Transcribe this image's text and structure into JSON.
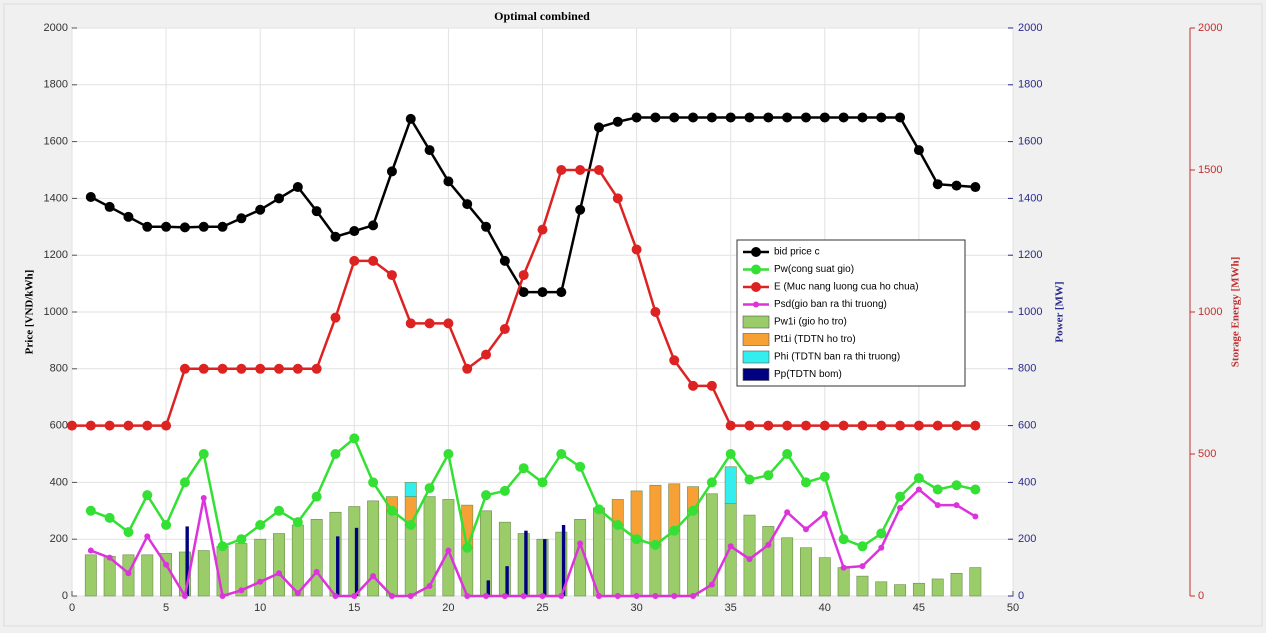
{
  "chart_data": {
    "type": "combo",
    "title": "Optimal combined",
    "ylabel": "Price [VND/kWh]",
    "y3label": "Power [MW]",
    "y2label": "Storage Energy [MWh]",
    "x": [
      0,
      1,
      2,
      3,
      4,
      5,
      6,
      7,
      8,
      9,
      10,
      11,
      12,
      13,
      14,
      15,
      16,
      17,
      18,
      19,
      20,
      21,
      22,
      23,
      24,
      25,
      26,
      27,
      28,
      29,
      30,
      31,
      32,
      33,
      34,
      35,
      36,
      37,
      38,
      39,
      40,
      41,
      42,
      43,
      44,
      45,
      46,
      47,
      48
    ],
    "xlim": [
      0,
      50
    ],
    "xticks": [
      0,
      5,
      10,
      15,
      20,
      25,
      30,
      35,
      40,
      45,
      50
    ],
    "ylim": [
      0,
      2000
    ],
    "yticks": [
      0,
      200,
      400,
      600,
      800,
      1000,
      1200,
      1400,
      1600,
      1800,
      2000
    ],
    "y3lim": [
      0,
      2000
    ],
    "y3ticks": [
      0,
      200,
      400,
      600,
      800,
      1000,
      1200,
      1400,
      1600,
      1800,
      2000
    ],
    "y2lim": [
      0,
      2000
    ],
    "y2ticks": [
      0,
      500,
      1000,
      1500,
      2000
    ],
    "grid": true,
    "legend": "east",
    "series": [
      {
        "name": "Pw1i (gio ho tro)",
        "type": "stacked_bar",
        "axis": "y3",
        "color": "#9acd6a",
        "values": [
          0,
          145,
          140,
          145,
          145,
          150,
          155,
          160,
          175,
          185,
          200,
          220,
          250,
          270,
          295,
          315,
          335,
          300,
          250,
          350,
          340,
          170,
          300,
          260,
          220,
          200,
          225,
          270,
          310,
          250,
          200,
          180,
          230,
          300,
          360,
          325,
          285,
          245,
          205,
          170,
          135,
          100,
          70,
          50,
          40,
          45,
          60,
          80,
          100
        ]
      },
      {
        "name": "Pt1i (TDTN ho tro)",
        "type": "stacked_bar",
        "axis": "y3",
        "color": "#f7a035",
        "values": [
          0,
          0,
          0,
          0,
          0,
          0,
          0,
          0,
          0,
          0,
          0,
          0,
          0,
          0,
          0,
          0,
          0,
          50,
          100,
          0,
          0,
          150,
          0,
          0,
          0,
          0,
          0,
          0,
          0,
          90,
          170,
          210,
          165,
          85,
          0,
          0,
          0,
          0,
          0,
          0,
          0,
          0,
          0,
          0,
          0,
          0,
          0,
          0,
          0
        ]
      },
      {
        "name": "Phi (TDTN ban ra thi truong)",
        "type": "stacked_bar",
        "axis": "y3",
        "color": "#33eeee",
        "values": [
          0,
          0,
          0,
          0,
          0,
          0,
          0,
          0,
          0,
          0,
          0,
          0,
          0,
          0,
          0,
          0,
          0,
          0,
          50,
          0,
          0,
          0,
          0,
          0,
          0,
          0,
          0,
          0,
          0,
          0,
          0,
          0,
          0,
          0,
          0,
          130,
          0,
          0,
          0,
          0,
          0,
          0,
          0,
          0,
          0,
          0,
          0,
          0,
          0
        ]
      },
      {
        "name": "Pp(TDTN bom)",
        "type": "bar",
        "axis": "y3",
        "color": "#000080",
        "values": [
          0,
          0,
          0,
          0,
          0,
          0,
          245,
          0,
          0,
          0,
          0,
          0,
          0,
          0,
          210,
          240,
          0,
          0,
          0,
          0,
          0,
          0,
          55,
          105,
          230,
          200,
          250,
          0,
          0,
          0,
          0,
          0,
          0,
          0,
          0,
          0,
          0,
          0,
          0,
          0,
          0,
          0,
          0,
          0,
          0,
          0,
          0,
          0,
          0
        ]
      },
      {
        "name": "bid price c",
        "type": "line",
        "color": "#000000",
        "marker": 5,
        "values": [
          null,
          1405,
          1370,
          1335,
          1300,
          1300,
          1298,
          1300,
          1300,
          1330,
          1360,
          1400,
          1440,
          1355,
          1265,
          1285,
          1305,
          1495,
          1680,
          1570,
          1460,
          1380,
          1300,
          1180,
          1070,
          1070,
          1070,
          1360,
          1650,
          1670,
          1685,
          1685,
          1685,
          1685,
          1685,
          1685,
          1685,
          1685,
          1685,
          1685,
          1685,
          1685,
          1685,
          1685,
          1685,
          1570,
          1450,
          1445,
          1440
        ]
      },
      {
        "name": "Pw(cong suat gio)",
        "type": "line",
        "axis": "y3",
        "color": "#33e033",
        "marker": 5,
        "values": [
          null,
          300,
          275,
          225,
          355,
          250,
          400,
          500,
          175,
          200,
          250,
          300,
          260,
          350,
          500,
          555,
          400,
          300,
          250,
          380,
          500,
          170,
          355,
          370,
          450,
          400,
          500,
          455,
          305,
          250,
          200,
          180,
          230,
          300,
          400,
          500,
          410,
          425,
          500,
          400,
          420,
          200,
          175,
          220,
          350,
          415,
          375,
          390,
          375
        ]
      },
      {
        "name": "E (Muc nang luong cua ho chua)",
        "type": "line",
        "axis": "y2",
        "color": "#dd2222",
        "marker": 5,
        "values": [
          600,
          600,
          600,
          600,
          600,
          600,
          800,
          800,
          800,
          800,
          800,
          800,
          800,
          800,
          980,
          1180,
          1180,
          1130,
          960,
          960,
          960,
          800,
          850,
          940,
          1130,
          1290,
          1500,
          1500,
          1500,
          1400,
          1220,
          1000,
          830,
          740,
          740,
          600,
          600,
          600,
          600,
          600,
          600,
          600,
          600,
          600,
          600,
          600,
          600,
          600,
          600
        ]
      },
      {
        "name": "Psd(gio ban ra thi truong)",
        "type": "line",
        "axis": "y3",
        "color": "#dd33dd",
        "marker": 3,
        "values": [
          null,
          160,
          135,
          80,
          210,
          110,
          0,
          345,
          0,
          20,
          50,
          80,
          10,
          85,
          0,
          0,
          70,
          0,
          0,
          35,
          160,
          0,
          0,
          0,
          0,
          0,
          0,
          185,
          0,
          0,
          0,
          0,
          0,
          0,
          40,
          175,
          130,
          180,
          295,
          235,
          290,
          100,
          105,
          170,
          310,
          375,
          320,
          320,
          280
        ]
      }
    ]
  }
}
